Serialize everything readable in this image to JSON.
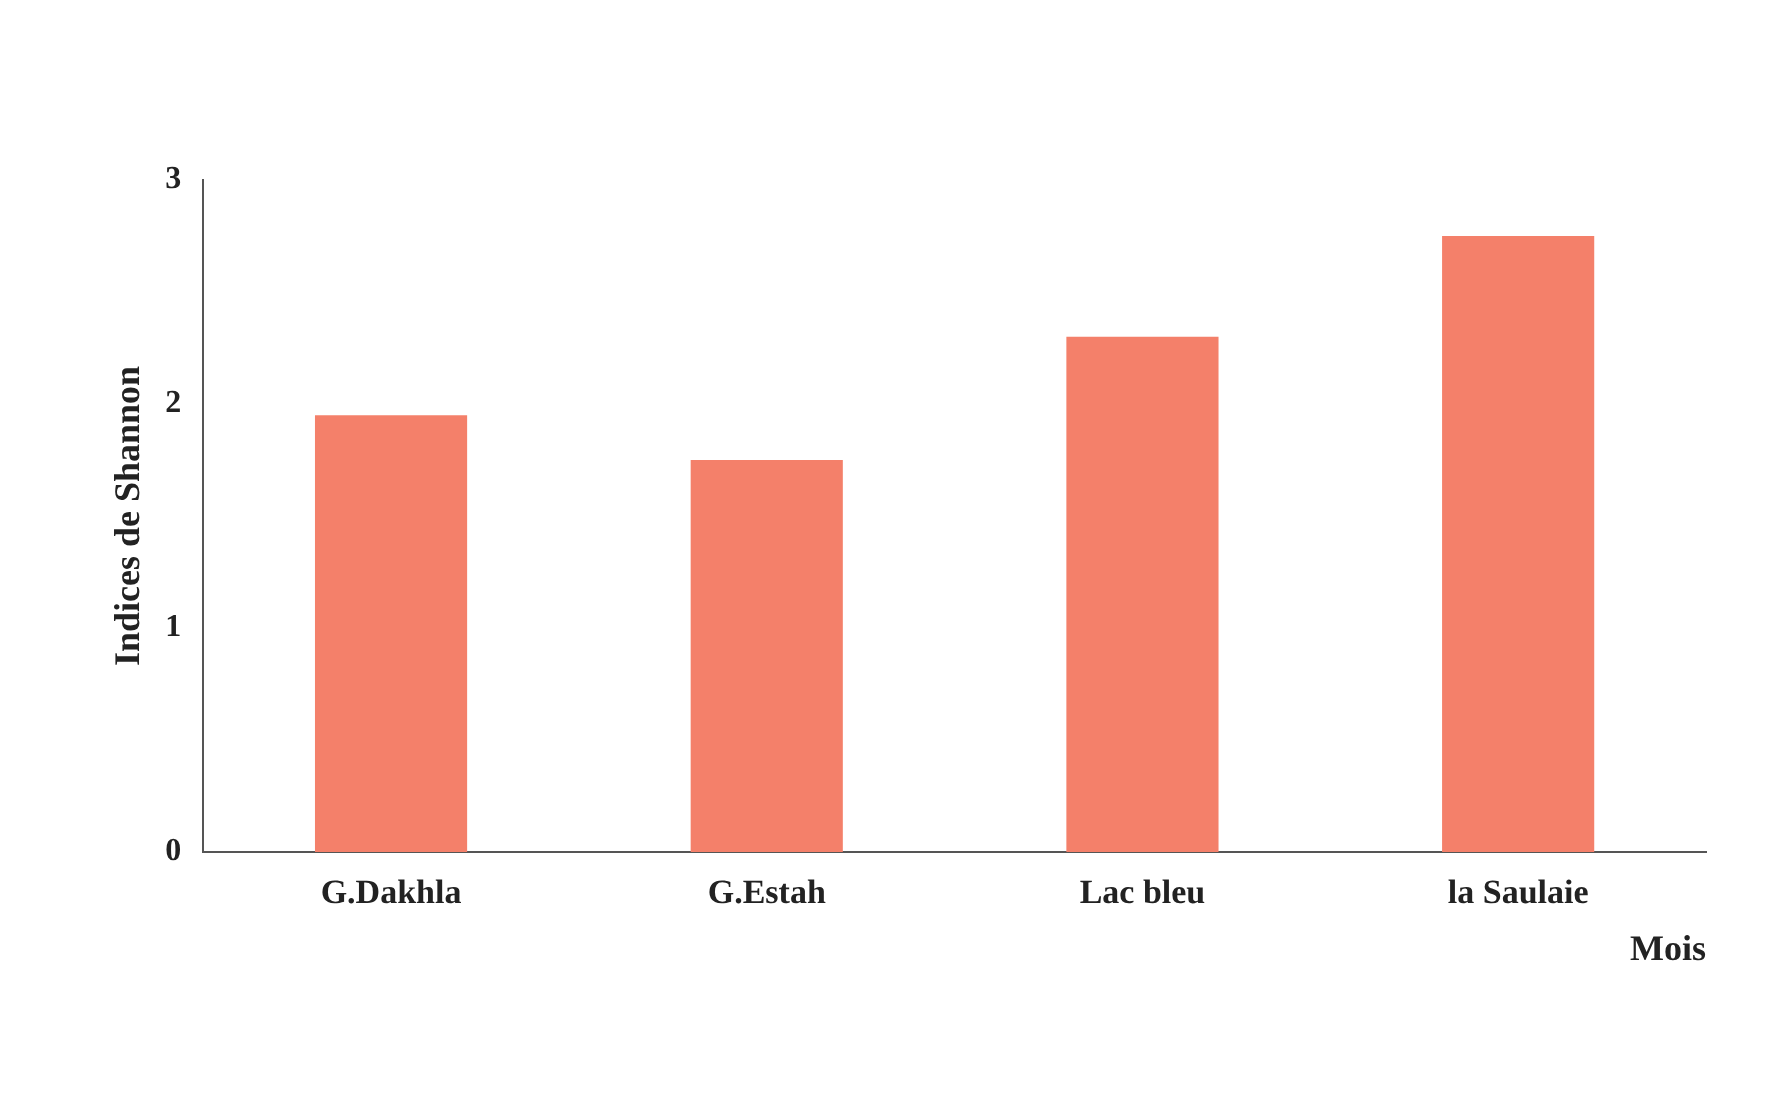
{
  "chart_data": {
    "type": "bar",
    "xlabel": "Mois",
    "ylabel": "Indices de Shannon",
    "categories": [
      "G.Dakhla",
      "G.Estah",
      "Lac bleu",
      "la Saulaie"
    ],
    "values": [
      1.95,
      1.75,
      2.3,
      2.75
    ],
    "color": "#f4806a",
    "ylim": [
      0,
      3
    ],
    "yticks": [
      0,
      1,
      2,
      3
    ],
    "grid": false,
    "legend": false
  }
}
